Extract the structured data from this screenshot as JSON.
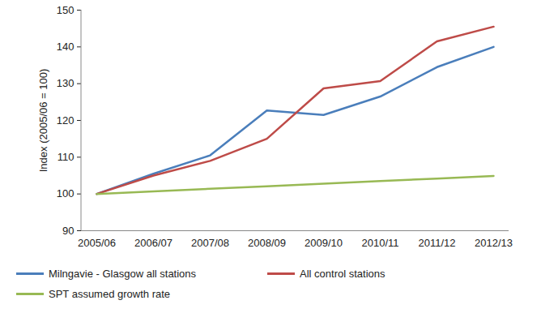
{
  "chart_data": {
    "type": "line",
    "y_label": "Index (2005/06 = 100)",
    "categories": [
      "2005/06",
      "2006/07",
      "2007/08",
      "2008/09",
      "2009/10",
      "2010/11",
      "2011/12",
      "2012/13"
    ],
    "series": [
      {
        "name": "Milngavie - Glasgow all stations",
        "color": "#4a7ebb",
        "values": [
          100,
          105.5,
          110.5,
          122.7,
          121.5,
          126.5,
          134.5,
          140
        ]
      },
      {
        "name": "All control stations",
        "color": "#be4b48",
        "values": [
          100,
          105,
          109,
          115,
          128.7,
          130.7,
          141.5,
          145.5
        ]
      },
      {
        "name": "SPT assumed growth rate",
        "color": "#98b954",
        "values": [
          100,
          100.7,
          101.4,
          102.1,
          102.8,
          103.5,
          104.2,
          104.9
        ]
      }
    ],
    "ylim": [
      90,
      150
    ],
    "yticks": [
      90,
      100,
      110,
      120,
      130,
      140,
      150
    ],
    "grid": false,
    "legend": "bottom"
  }
}
